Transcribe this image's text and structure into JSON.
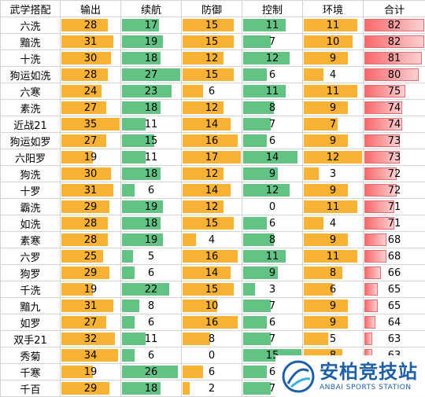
{
  "headers": [
    "武学搭配",
    "输出",
    "续航",
    "防御",
    "控制",
    "环境",
    "合计"
  ],
  "rows": [
    {
      "name": "六洗",
      "values": [
        28,
        17,
        15,
        11,
        11,
        82
      ]
    },
    {
      "name": "黯洗",
      "values": [
        31,
        19,
        15,
        7,
        10,
        82
      ]
    },
    {
      "name": "十洗",
      "values": [
        30,
        18,
        12,
        12,
        9,
        81
      ]
    },
    {
      "name": "狗运如洗",
      "values": [
        28,
        27,
        15,
        6,
        4,
        80
      ]
    },
    {
      "name": "六寒",
      "values": [
        24,
        23,
        6,
        11,
        11,
        75
      ]
    },
    {
      "name": "素洗",
      "values": [
        27,
        18,
        12,
        8,
        9,
        74
      ]
    },
    {
      "name": "近战21",
      "values": [
        35,
        11,
        14,
        7,
        7,
        74
      ]
    },
    {
      "name": "狗运如罗",
      "values": [
        27,
        15,
        16,
        6,
        9,
        73
      ]
    },
    {
      "name": "六阳罗",
      "values": [
        19,
        11,
        17,
        14,
        12,
        73
      ]
    },
    {
      "name": "狗洗",
      "values": [
        30,
        18,
        12,
        9,
        3,
        72
      ]
    },
    {
      "name": "十罗",
      "values": [
        31,
        6,
        14,
        12,
        9,
        72
      ]
    },
    {
      "name": "霸洗",
      "values": [
        29,
        19,
        12,
        0,
        11,
        71
      ]
    },
    {
      "name": "如洗",
      "values": [
        28,
        18,
        15,
        6,
        4,
        71
      ]
    },
    {
      "name": "素寒",
      "values": [
        28,
        19,
        4,
        8,
        9,
        68
      ]
    },
    {
      "name": "六罗",
      "values": [
        25,
        5,
        16,
        11,
        11,
        68
      ]
    },
    {
      "name": "狗罗",
      "values": [
        29,
        6,
        14,
        9,
        8,
        66
      ]
    },
    {
      "name": "千洗",
      "values": [
        19,
        22,
        15,
        3,
        6,
        65
      ]
    },
    {
      "name": "黯九",
      "values": [
        31,
        8,
        10,
        7,
        9,
        65
      ]
    },
    {
      "name": "如罗",
      "values": [
        27,
        6,
        16,
        6,
        9,
        64
      ]
    },
    {
      "name": "双手21",
      "values": [
        32,
        11,
        8,
        7,
        5,
        63
      ]
    },
    {
      "name": "秀菊",
      "values": [
        34,
        6,
        0,
        15,
        8,
        63
      ]
    },
    {
      "name": "千寒",
      "values": [
        19,
        26,
        6,
        6,
        null,
        null
      ]
    },
    {
      "name": "千百",
      "values": [
        29,
        18,
        2,
        7,
        null,
        null
      ]
    }
  ],
  "scales": [
    {
      "max": 35,
      "color": "#f9b233"
    },
    {
      "max": 27,
      "color": "#63c384"
    },
    {
      "max": 17,
      "color": "#f9b233"
    },
    {
      "max": 15,
      "color": "#63c384"
    },
    {
      "max": 12,
      "color": "#f9b233"
    },
    {
      "min": 60,
      "max": 82,
      "color": "#f8696b"
    }
  ],
  "watermark": {
    "title": "安柏竞技站",
    "subtitle": "ANBAI SPORTS STATION"
  }
}
